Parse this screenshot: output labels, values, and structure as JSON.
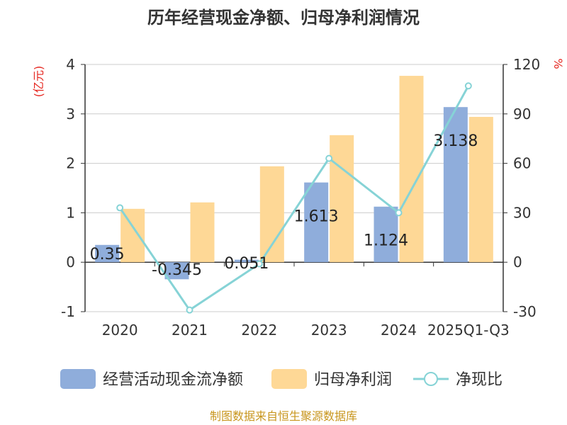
{
  "chart_data": {
    "type": "bar",
    "title": "历年经营现金净额、归母净利润情况",
    "categories": [
      "2020",
      "2021",
      "2022",
      "2023",
      "2024",
      "2025Q1-Q3"
    ],
    "series": [
      {
        "name": "经营活动现金流净额",
        "axis": "left",
        "kind": "bar",
        "color": "#8faddb",
        "values": [
          0.35,
          -0.345,
          0.051,
          1.613,
          1.124,
          3.138
        ],
        "labels": [
          "0.35",
          "-0.345",
          "0.051",
          "1.613",
          "1.124",
          "3.138"
        ]
      },
      {
        "name": "归母净利润",
        "axis": "left",
        "kind": "bar",
        "color": "#fed896",
        "values": [
          1.08,
          1.21,
          1.94,
          2.57,
          3.77,
          2.94
        ]
      },
      {
        "name": "净现比",
        "axis": "right",
        "kind": "line",
        "color": "#86d3d6",
        "values": [
          33,
          -29,
          -1,
          63,
          30,
          107
        ]
      }
    ],
    "y_left": {
      "unit": "(亿元)",
      "range": [
        -1,
        4
      ],
      "ticks": [
        -1,
        0,
        1,
        2,
        3,
        4
      ]
    },
    "y_right": {
      "unit": "%",
      "range": [
        -30,
        120
      ],
      "ticks": [
        -30,
        0,
        30,
        60,
        90,
        120
      ]
    },
    "grid": true,
    "legend_position": "bottom"
  },
  "source_note": "制图数据来自恒生聚源数据库"
}
